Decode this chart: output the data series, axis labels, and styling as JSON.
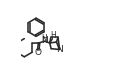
{
  "bg_color": "#ffffff",
  "line_color": "#2a2a2a",
  "line_width": 1.15,
  "figsize": [
    1.22,
    0.79
  ],
  "dpi": 100,
  "xlim": [
    0.0,
    1.0
  ],
  "ylim": [
    0.0,
    1.0
  ]
}
